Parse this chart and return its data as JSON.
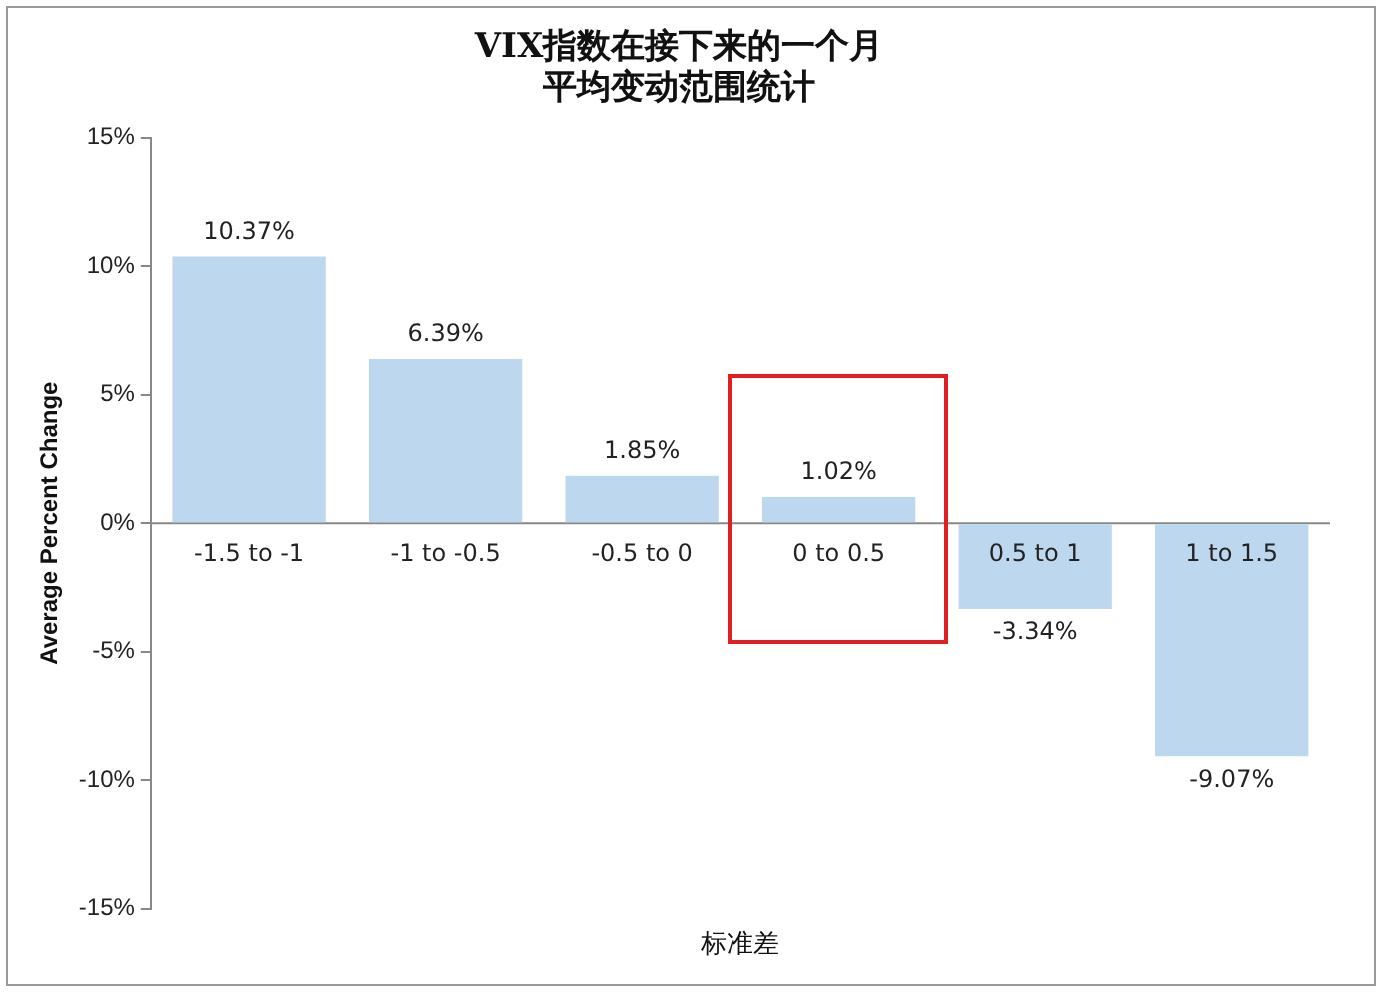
{
  "chart_data": {
    "type": "bar",
    "title": "VIX指数在接下来的一个月平均变动范围统计",
    "xlabel": "标准差",
    "ylabel": "Average Percent Change",
    "categories": [
      "-1.5 to -1",
      "-1 to -0.5",
      "-0.5 to 0",
      "0 to 0.5",
      "0.5 to 1",
      "1 to 1.5"
    ],
    "values": [
      10.37,
      6.39,
      1.85,
      1.02,
      -3.34,
      -9.07
    ],
    "value_labels": [
      "10.37%",
      "6.39%",
      "1.85%",
      "1.02%",
      "-3.34%",
      "-9.07%"
    ],
    "color": "#bdd7ee",
    "ylim": [
      -15,
      15
    ],
    "yticks": [
      {
        "value": -15,
        "label": "-15%"
      },
      {
        "value": -10,
        "label": "-10%"
      },
      {
        "value": -5,
        "label": "-5%"
      },
      {
        "value": 0,
        "label": "0%"
      },
      {
        "value": 5,
        "label": "5%"
      },
      {
        "value": 10,
        "label": "10%"
      },
      {
        "value": 15,
        "label": "15%"
      }
    ],
    "grid": false,
    "legend": false
  }
}
